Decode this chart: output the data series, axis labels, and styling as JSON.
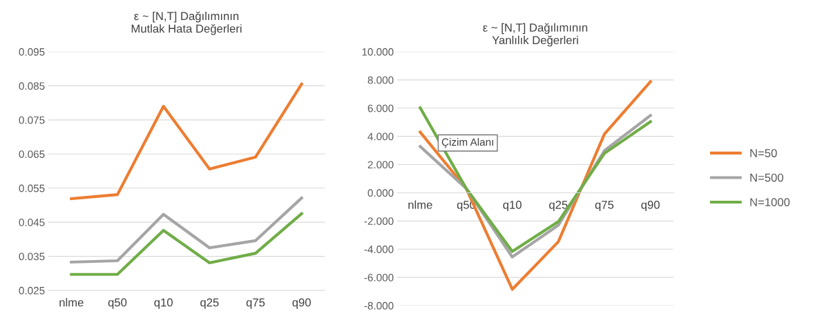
{
  "chart_data": [
    {
      "type": "line",
      "title": "ε ~ [N,T] Dağılımının\nMutlak Hata Değerleri",
      "categories": [
        "nlme",
        "q50",
        "q10",
        "q25",
        "q75",
        "q90"
      ],
      "series": [
        {
          "color": "#ed7d31",
          "values": [
            0.0519,
            0.0531,
            0.079,
            0.0606,
            0.0641,
            0.0855
          ]
        },
        {
          "color": "#a5a5a5",
          "values": [
            0.0333,
            0.0337,
            0.0473,
            0.0375,
            0.0396,
            0.0521
          ]
        },
        {
          "color": "#70ad47",
          "values": [
            0.0297,
            0.0297,
            0.0426,
            0.0331,
            0.0359,
            0.0475
          ]
        }
      ],
      "ylim": [
        0.025,
        0.095
      ],
      "yticks": [
        0.025,
        0.035,
        0.045,
        0.055,
        0.065,
        0.075,
        0.085,
        0.095
      ],
      "grid": "y",
      "legend": false
    },
    {
      "type": "line",
      "title": "ε ~ [N,T] Dağılımının\nYanlılık Değerleri",
      "categories": [
        "nlme",
        "q50",
        "q10",
        "q25",
        "q75",
        "q90"
      ],
      "series": [
        {
          "name": "N=50",
          "color": "#ed7d31",
          "values": [
            4.3,
            0.3,
            -6.85,
            -3.47,
            4.16,
            7.88
          ]
        },
        {
          "name": "N=500",
          "color": "#a5a5a5",
          "values": [
            3.28,
            0.3,
            -4.55,
            -2.3,
            2.98,
            5.48
          ]
        },
        {
          "name": "N=1000",
          "color": "#70ad47",
          "values": [
            6.02,
            0.3,
            -4.16,
            -2.05,
            2.79,
            5.04
          ]
        }
      ],
      "ylim": [
        -8,
        10
      ],
      "yticks": [
        {
          "value": -8,
          "label": "-8.000"
        },
        {
          "value": -6,
          "label": "-6.000"
        },
        {
          "value": -4,
          "label": "-4.000"
        },
        {
          "value": -2,
          "label": "-2.000"
        },
        {
          "value": 0,
          "label": "0.000"
        },
        {
          "value": 2,
          "label": "2.000"
        },
        {
          "value": 4,
          "label": "4.000"
        },
        {
          "value": 6,
          "label": "6.000"
        },
        {
          "value": 8,
          "label": "8.000"
        },
        {
          "value": 10,
          "label": "10.000"
        }
      ],
      "grid": "y",
      "legend": "right",
      "annotations": [
        "Çizim Alanı"
      ]
    }
  ]
}
